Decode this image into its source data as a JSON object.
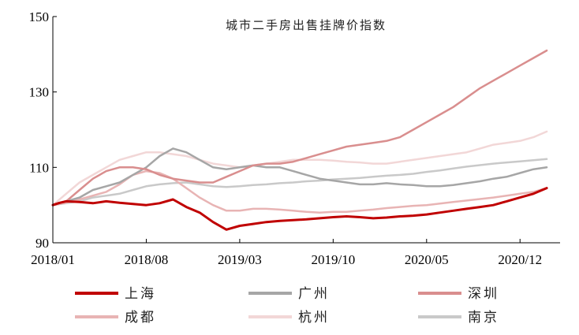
{
  "chart_data": {
    "type": "line",
    "title": "城市二手房出售挂牌价指数",
    "xlabel": "",
    "ylabel": "",
    "ylim": [
      90,
      150
    ],
    "yticks": [
      90,
      110,
      130,
      150
    ],
    "xlim": [
      0,
      38
    ],
    "xticks": [
      {
        "label": "2018/01",
        "x": 0
      },
      {
        "label": "2018/08",
        "x": 7
      },
      {
        "label": "2019/03",
        "x": 14
      },
      {
        "label": "2019/10",
        "x": 21
      },
      {
        "label": "2020/05",
        "x": 28
      },
      {
        "label": "2020/12",
        "x": 35
      }
    ],
    "grid": false,
    "legend": "bottom",
    "series": [
      {
        "name": "上海",
        "color": "#c00000",
        "width": 3,
        "points": [
          [
            0,
            100
          ],
          [
            0.5,
            100.6
          ],
          [
            1,
            101
          ],
          [
            2,
            100.8
          ],
          [
            3,
            100.5
          ],
          [
            4,
            101
          ],
          [
            5,
            100.6
          ],
          [
            6,
            100.3
          ],
          [
            7,
            100
          ],
          [
            8,
            100.5
          ],
          [
            9,
            101.5
          ],
          [
            10,
            99.5
          ],
          [
            11,
            98
          ],
          [
            12,
            95.5
          ],
          [
            13,
            93.5
          ],
          [
            14,
            94.5
          ],
          [
            15,
            95
          ],
          [
            16,
            95.5
          ],
          [
            17,
            95.8
          ],
          [
            18,
            96
          ],
          [
            19,
            96.2
          ],
          [
            20,
            96.5
          ],
          [
            21,
            96.8
          ],
          [
            22,
            97
          ],
          [
            23,
            96.8
          ],
          [
            24,
            96.5
          ],
          [
            25,
            96.7
          ],
          [
            26,
            97
          ],
          [
            27,
            97.2
          ],
          [
            28,
            97.5
          ],
          [
            29,
            98
          ],
          [
            30,
            98.5
          ],
          [
            31,
            99
          ],
          [
            32,
            99.5
          ],
          [
            33,
            100
          ],
          [
            34,
            101
          ],
          [
            35,
            102
          ],
          [
            36,
            103
          ],
          [
            37,
            104.5
          ]
        ]
      },
      {
        "name": "广州",
        "color": "#a6a6a6",
        "width": 2.5,
        "points": [
          [
            0,
            100
          ],
          [
            1,
            101
          ],
          [
            2,
            102
          ],
          [
            3,
            104
          ],
          [
            4,
            105
          ],
          [
            5,
            106
          ],
          [
            6,
            108
          ],
          [
            7,
            110
          ],
          [
            8,
            113
          ],
          [
            9,
            115
          ],
          [
            10,
            114
          ],
          [
            11,
            112
          ],
          [
            12,
            110
          ],
          [
            13,
            109.5
          ],
          [
            14,
            110
          ],
          [
            15,
            110.5
          ],
          [
            16,
            110
          ],
          [
            17,
            110
          ],
          [
            18,
            109
          ],
          [
            19,
            108
          ],
          [
            20,
            107
          ],
          [
            21,
            106.5
          ],
          [
            22,
            106
          ],
          [
            23,
            105.5
          ],
          [
            24,
            105.5
          ],
          [
            25,
            105.8
          ],
          [
            26,
            105.5
          ],
          [
            27,
            105.3
          ],
          [
            28,
            105
          ],
          [
            29,
            105
          ],
          [
            30,
            105.3
          ],
          [
            31,
            105.8
          ],
          [
            32,
            106.3
          ],
          [
            33,
            107
          ],
          [
            34,
            107.5
          ],
          [
            35,
            108.5
          ],
          [
            36,
            109.5
          ],
          [
            37,
            110
          ]
        ]
      },
      {
        "name": "深圳",
        "color": "#d98e8e",
        "width": 2.5,
        "points": [
          [
            0,
            100
          ],
          [
            1,
            101
          ],
          [
            2,
            104
          ],
          [
            3,
            107
          ],
          [
            4,
            109
          ],
          [
            5,
            110
          ],
          [
            6,
            110
          ],
          [
            7,
            109.5
          ],
          [
            8,
            108
          ],
          [
            9,
            107
          ],
          [
            10,
            106.5
          ],
          [
            11,
            106
          ],
          [
            12,
            106
          ],
          [
            13,
            107.5
          ],
          [
            14,
            109
          ],
          [
            15,
            110.5
          ],
          [
            16,
            111
          ],
          [
            17,
            111
          ],
          [
            18,
            111.5
          ],
          [
            19,
            112.5
          ],
          [
            20,
            113.5
          ],
          [
            21,
            114.5
          ],
          [
            22,
            115.5
          ],
          [
            23,
            116
          ],
          [
            24,
            116.5
          ],
          [
            25,
            117
          ],
          [
            26,
            118
          ],
          [
            27,
            120
          ],
          [
            28,
            122
          ],
          [
            29,
            124
          ],
          [
            30,
            126
          ],
          [
            31,
            128.5
          ],
          [
            32,
            131
          ],
          [
            33,
            133
          ],
          [
            34,
            135
          ],
          [
            35,
            137
          ],
          [
            36,
            139
          ],
          [
            37,
            141
          ]
        ]
      },
      {
        "name": "成都",
        "color": "#e8b4b4",
        "width": 2.5,
        "points": [
          [
            0,
            100
          ],
          [
            1,
            100.6
          ],
          [
            2,
            101.5
          ],
          [
            3,
            102.5
          ],
          [
            4,
            103.5
          ],
          [
            5,
            105.5
          ],
          [
            6,
            108
          ],
          [
            7,
            109
          ],
          [
            8,
            108.5
          ],
          [
            9,
            107
          ],
          [
            10,
            104.5
          ],
          [
            11,
            102
          ],
          [
            12,
            100
          ],
          [
            13,
            98.5
          ],
          [
            14,
            98.5
          ],
          [
            15,
            99
          ],
          [
            16,
            99
          ],
          [
            17,
            98.8
          ],
          [
            18,
            98.5
          ],
          [
            19,
            98.2
          ],
          [
            20,
            98
          ],
          [
            21,
            98.2
          ],
          [
            22,
            98.2
          ],
          [
            23,
            98.5
          ],
          [
            24,
            98.8
          ],
          [
            25,
            99.2
          ],
          [
            26,
            99.5
          ],
          [
            27,
            99.8
          ],
          [
            28,
            100
          ],
          [
            29,
            100.4
          ],
          [
            30,
            100.8
          ],
          [
            31,
            101.2
          ],
          [
            32,
            101.6
          ],
          [
            33,
            102
          ],
          [
            34,
            102.5
          ],
          [
            35,
            103
          ],
          [
            36,
            103.5
          ],
          [
            37,
            104.5
          ]
        ]
      },
      {
        "name": "杭州",
        "color": "#f2d7d7",
        "width": 2.5,
        "points": [
          [
            0,
            100
          ],
          [
            1,
            103
          ],
          [
            2,
            106
          ],
          [
            3,
            108
          ],
          [
            4,
            110
          ],
          [
            5,
            112
          ],
          [
            6,
            113
          ],
          [
            7,
            114
          ],
          [
            8,
            114
          ],
          [
            9,
            113.5
          ],
          [
            10,
            113
          ],
          [
            11,
            112
          ],
          [
            12,
            111
          ],
          [
            13,
            110.5
          ],
          [
            14,
            110
          ],
          [
            15,
            110.5
          ],
          [
            16,
            111
          ],
          [
            17,
            111.5
          ],
          [
            18,
            112
          ],
          [
            19,
            112
          ],
          [
            20,
            112
          ],
          [
            21,
            111.8
          ],
          [
            22,
            111.5
          ],
          [
            23,
            111.3
          ],
          [
            24,
            111
          ],
          [
            25,
            111
          ],
          [
            26,
            111.5
          ],
          [
            27,
            112
          ],
          [
            28,
            112.5
          ],
          [
            29,
            113
          ],
          [
            30,
            113.5
          ],
          [
            31,
            114
          ],
          [
            32,
            115
          ],
          [
            33,
            116
          ],
          [
            34,
            116.5
          ],
          [
            35,
            117
          ],
          [
            36,
            118
          ],
          [
            37,
            119.5
          ]
        ]
      },
      {
        "name": "南京",
        "color": "#c9c9c9",
        "width": 2.5,
        "points": [
          [
            0,
            100
          ],
          [
            1,
            100.5
          ],
          [
            2,
            101
          ],
          [
            3,
            102
          ],
          [
            4,
            102.5
          ],
          [
            5,
            103
          ],
          [
            6,
            104
          ],
          [
            7,
            105
          ],
          [
            8,
            105.5
          ],
          [
            9,
            105.8
          ],
          [
            10,
            106
          ],
          [
            11,
            105.5
          ],
          [
            12,
            105
          ],
          [
            13,
            104.8
          ],
          [
            14,
            105
          ],
          [
            15,
            105.3
          ],
          [
            16,
            105.5
          ],
          [
            17,
            105.8
          ],
          [
            18,
            106
          ],
          [
            19,
            106.3
          ],
          [
            20,
            106.5
          ],
          [
            21,
            106.8
          ],
          [
            22,
            107
          ],
          [
            23,
            107.2
          ],
          [
            24,
            107.5
          ],
          [
            25,
            107.8
          ],
          [
            26,
            108
          ],
          [
            27,
            108.3
          ],
          [
            28,
            108.8
          ],
          [
            29,
            109.2
          ],
          [
            30,
            109.7
          ],
          [
            31,
            110.2
          ],
          [
            32,
            110.6
          ],
          [
            33,
            111
          ],
          [
            34,
            111.3
          ],
          [
            35,
            111.6
          ],
          [
            36,
            111.9
          ],
          [
            37,
            112.2
          ]
        ]
      }
    ]
  }
}
